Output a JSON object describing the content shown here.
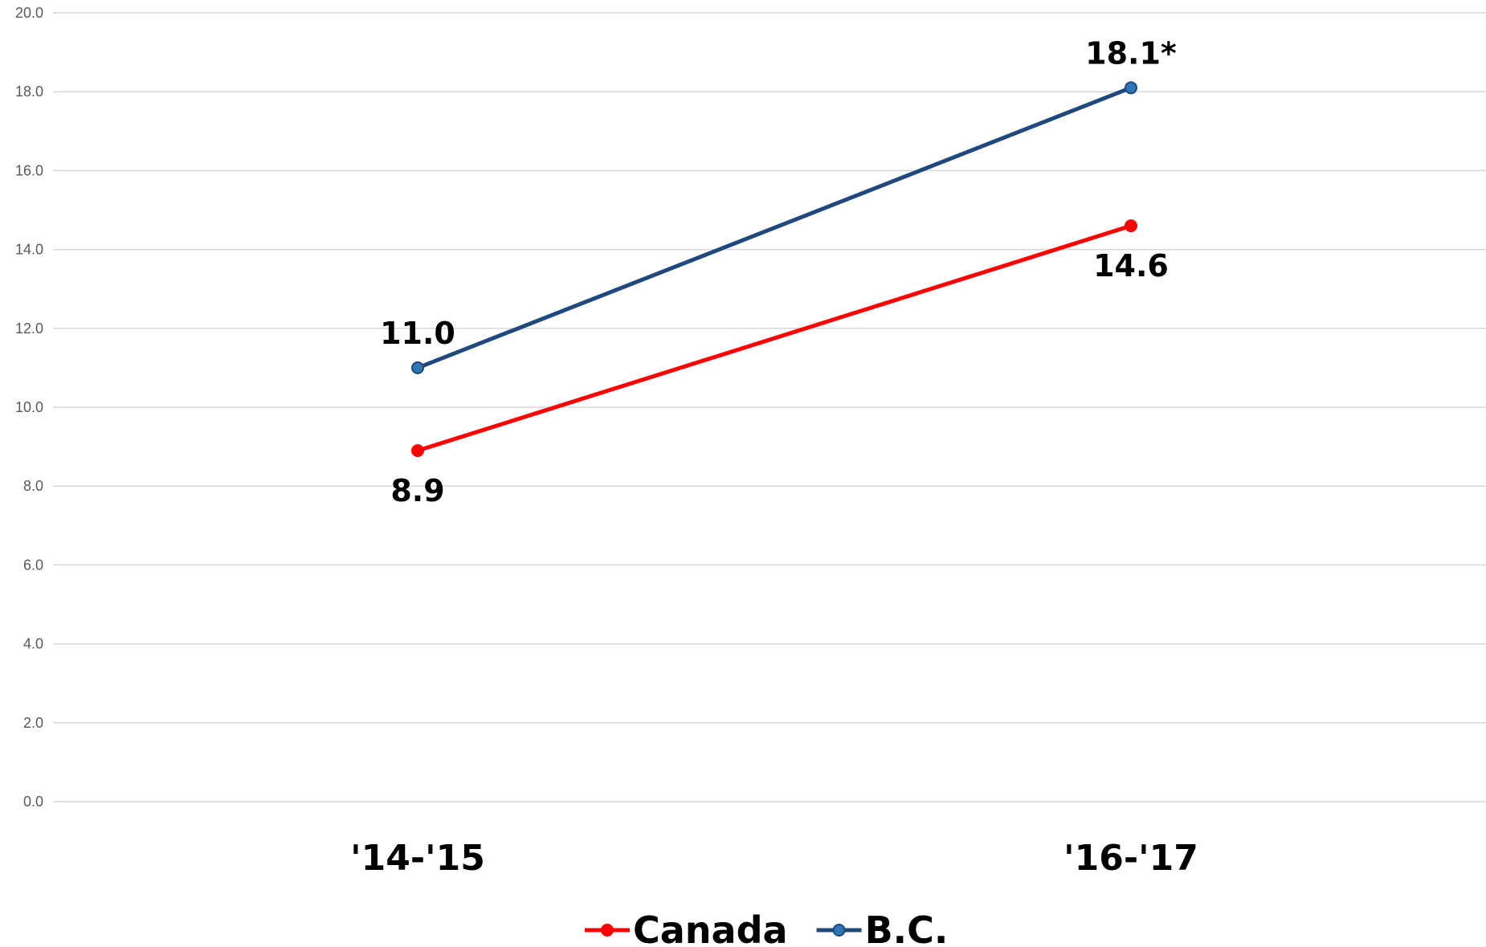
{
  "chart_data": {
    "type": "line",
    "categories": [
      "'14-'15",
      "'16-'17"
    ],
    "y_ticks": [
      "0.0",
      "2.0",
      "4.0",
      "6.0",
      "8.0",
      "10.0",
      "12.0",
      "14.0",
      "16.0",
      "18.0",
      "20.0"
    ],
    "ylim": [
      0,
      20
    ],
    "grid": true,
    "legend_position": "bottom",
    "series": [
      {
        "name": "Canada",
        "color": "#ff0000",
        "values": [
          8.9,
          14.6
        ],
        "labels": [
          "8.9",
          "14.6"
        ],
        "label_placement": [
          "below",
          "below"
        ]
      },
      {
        "name": "B.C.",
        "color": "#1f497d",
        "marker_color": "#2e75b6",
        "values": [
          11.0,
          18.1
        ],
        "labels": [
          "11.0",
          "18.1*"
        ],
        "label_placement": [
          "above",
          "above"
        ]
      }
    ]
  }
}
